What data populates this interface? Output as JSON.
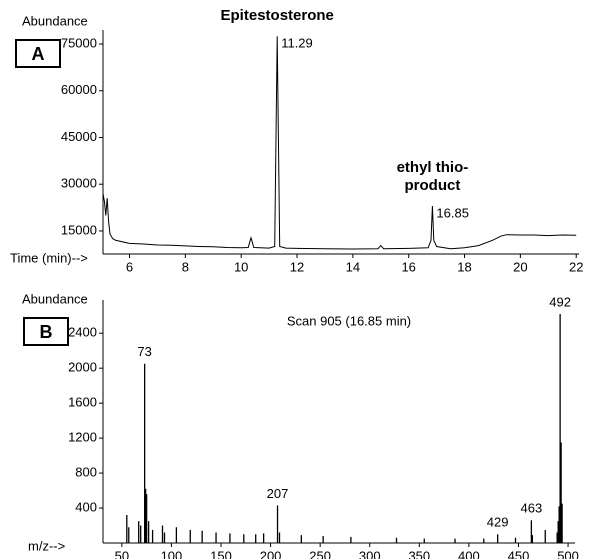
{
  "chart_data": [
    {
      "type": "line",
      "panel": "A",
      "y_label": "Abundance",
      "x_label": "Time (min)-->",
      "color": "#000000",
      "xlim": [
        5.05,
        22.1
      ],
      "xticks": [
        6,
        8,
        10,
        12,
        14,
        16,
        18,
        20,
        22
      ],
      "ylim": [
        7600,
        79500
      ],
      "yticks": [
        15000,
        30000,
        45000,
        60000,
        75000
      ],
      "x": [
        5.05,
        5.1,
        5.15,
        5.2,
        5.25,
        5.3,
        5.4,
        5.5,
        6,
        6.5,
        7,
        7.5,
        8,
        8.5,
        9,
        9.5,
        10,
        10.25,
        10.35,
        10.45,
        11,
        11.2,
        11.29,
        11.38,
        11.6,
        12,
        13,
        14,
        14.9,
        15,
        15.1,
        16,
        16.7,
        16.8,
        16.85,
        16.9,
        17,
        17.5,
        18,
        18.5,
        19,
        19.3,
        19.5,
        20,
        20.5,
        21,
        21.5,
        22
      ],
      "series": [
        {
          "values": [
            27000,
            24500,
            20000,
            25500,
            18000,
            14000,
            12500,
            12000,
            11000,
            10800,
            10500,
            10400,
            10200,
            10000,
            9900,
            9700,
            9600,
            9700,
            12800,
            9700,
            9500,
            10000,
            77500,
            10000,
            9500,
            9400,
            9300,
            9200,
            9300,
            10300,
            9300,
            9400,
            9600,
            12000,
            23000,
            12000,
            10000,
            9300,
            9600,
            10300,
            12000,
            13300,
            13800,
            13700,
            13700,
            13500,
            13700,
            13600
          ]
        }
      ],
      "peaks": [
        {
          "x": 11.29,
          "name": [
            "Epitestosterone"
          ]
        },
        {
          "x": 16.85,
          "name": [
            "ethyl thio-",
            "product"
          ]
        }
      ]
    },
    {
      "type": "bar",
      "panel": "B",
      "y_label": "Abundance",
      "x_label": "m/z-->",
      "subtitle": "Scan 905 (16.85 min)",
      "color": "#000000",
      "xlim": [
        31,
        507
      ],
      "xticks": [
        50,
        100,
        150,
        200,
        250,
        300,
        350,
        400,
        450,
        500
      ],
      "ylim": [
        0,
        2780
      ],
      "yticks": [
        400,
        800,
        1200,
        1600,
        2000,
        2400
      ],
      "x": [
        55,
        57,
        67,
        69,
        73,
        74,
        75,
        77,
        81,
        91,
        93,
        105,
        119,
        131,
        145,
        159,
        173,
        185,
        193,
        207,
        209,
        231,
        253,
        281,
        327,
        355,
        386,
        415,
        429,
        447,
        463,
        464,
        477,
        489,
        490,
        491,
        492,
        493,
        494
      ],
      "series": [
        {
          "values": [
            320,
            180,
            250,
            200,
            2050,
            620,
            560,
            250,
            150,
            200,
            120,
            180,
            150,
            140,
            120,
            110,
            100,
            100,
            110,
            430,
            120,
            90,
            80,
            70,
            60,
            50,
            50,
            50,
            100,
            60,
            260,
            90,
            150,
            120,
            250,
            420,
            2620,
            1150,
            450
          ]
        }
      ],
      "peaks": [
        {
          "x": 73
        },
        {
          "x": 207
        },
        {
          "x": 429
        },
        {
          "x": 463
        },
        {
          "x": 492
        }
      ]
    }
  ]
}
